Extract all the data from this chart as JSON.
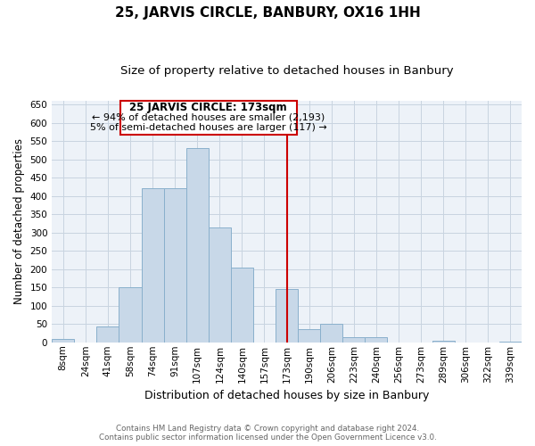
{
  "title": "25, JARVIS CIRCLE, BANBURY, OX16 1HH",
  "subtitle": "Size of property relative to detached houses in Banbury",
  "xlabel": "Distribution of detached houses by size in Banbury",
  "ylabel": "Number of detached properties",
  "bar_labels": [
    "8sqm",
    "24sqm",
    "41sqm",
    "58sqm",
    "74sqm",
    "91sqm",
    "107sqm",
    "124sqm",
    "140sqm",
    "157sqm",
    "173sqm",
    "190sqm",
    "206sqm",
    "223sqm",
    "240sqm",
    "256sqm",
    "273sqm",
    "289sqm",
    "306sqm",
    "322sqm",
    "339sqm"
  ],
  "bar_values": [
    8,
    0,
    44,
    150,
    420,
    420,
    530,
    315,
    205,
    0,
    145,
    35,
    50,
    15,
    15,
    0,
    0,
    5,
    0,
    0,
    3
  ],
  "bar_color": "#c8d8e8",
  "bar_edge_color": "#8ab0cc",
  "vline_x_index": 10,
  "vline_color": "#cc0000",
  "annotation_title": "25 JARVIS CIRCLE: 173sqm",
  "annotation_line1": "← 94% of detached houses are smaller (2,193)",
  "annotation_line2": "5% of semi-detached houses are larger (117) →",
  "annotation_box_color": "#ffffff",
  "annotation_box_edge": "#cc0000",
  "ylim": [
    0,
    660
  ],
  "yticks": [
    0,
    50,
    100,
    150,
    200,
    250,
    300,
    350,
    400,
    450,
    500,
    550,
    600,
    650
  ],
  "footer_line1": "Contains HM Land Registry data © Crown copyright and database right 2024.",
  "footer_line2": "Contains public sector information licensed under the Open Government Licence v3.0.",
  "bg_color": "#ffffff",
  "plot_bg_color": "#edf2f8",
  "grid_color": "#c8d4e0",
  "title_fontsize": 11,
  "subtitle_fontsize": 9.5,
  "ylabel_fontsize": 8.5,
  "xlabel_fontsize": 9,
  "tick_fontsize": 7.5,
  "annot_title_fontsize": 8.5,
  "annot_text_fontsize": 8
}
